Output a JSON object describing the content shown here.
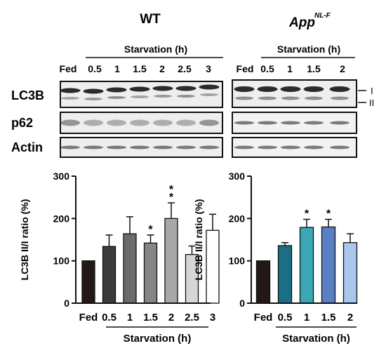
{
  "panels": [
    {
      "title": "WT",
      "title_superscript": "",
      "group_label": "Starvation (h)",
      "lanes": [
        "Fed",
        "0.5",
        "1",
        "1.5",
        "2",
        "2.5",
        "3"
      ],
      "blot_labels": [
        "LC3B",
        "p62",
        "Actin"
      ]
    },
    {
      "title": "App",
      "title_superscript": "NL-F",
      "group_label": "Starvation (h)",
      "lanes": [
        "Fed",
        "0.5",
        "1",
        "1.5",
        "2"
      ],
      "band_labels": [
        "I",
        "II"
      ]
    }
  ],
  "chart_data": [
    {
      "type": "bar",
      "categories": [
        "Fed",
        "0.5",
        "1",
        "1.5",
        "2",
        "2.5",
        "3"
      ],
      "values": [
        100,
        134,
        164,
        142,
        200,
        115,
        172
      ],
      "errors": [
        0,
        27,
        40,
        19,
        37,
        20,
        38
      ],
      "significance": [
        "",
        "",
        "",
        "*",
        "**",
        "",
        ""
      ],
      "colors": [
        "#231815",
        "#3b3b3b",
        "#6b6b6b",
        "#858585",
        "#a8a8a8",
        "#d6d6d6",
        "#ffffff"
      ],
      "ylabel": "LC3B II/I ratio (%)",
      "xlabel": "Starvation (h)",
      "ylim": [
        0,
        300
      ],
      "yticks": [
        0,
        100,
        200,
        300
      ]
    },
    {
      "type": "bar",
      "categories": [
        "Fed",
        "0.5",
        "1",
        "1.5",
        "2"
      ],
      "values": [
        100,
        136,
        179,
        180,
        143
      ],
      "errors": [
        0,
        7,
        19,
        18,
        21
      ],
      "significance": [
        "",
        "",
        "*",
        "*",
        ""
      ],
      "colors": [
        "#231815",
        "#1a6f86",
        "#3aa8b5",
        "#5b7fc4",
        "#a9c6ec"
      ],
      "ylabel": "LC3B II/I ratio (%)",
      "xlabel": "Starvation (h)",
      "ylim": [
        0,
        300
      ],
      "yticks": [
        0,
        100,
        200,
        300
      ]
    }
  ]
}
